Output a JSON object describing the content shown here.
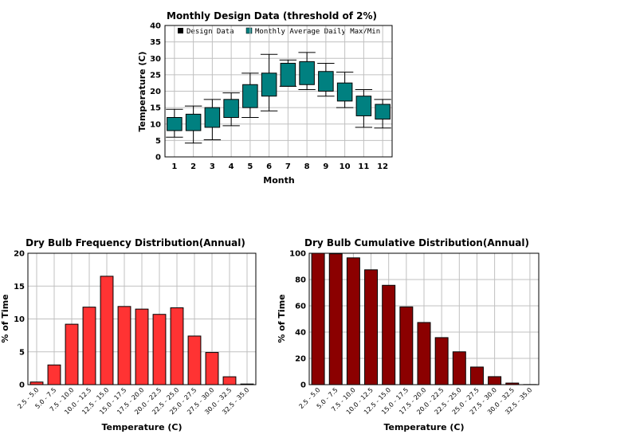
{
  "colors": {
    "box_fill": "#008080",
    "freq_bar": "#ff3333",
    "cum_bar": "#8b0000",
    "grid": "#c0c0c0"
  },
  "chart_data": [
    {
      "type": "box",
      "title": "Monthly Design Data (threshold of 2%)",
      "xlabel": "Month",
      "ylabel": "Temperature (C)",
      "categories": [
        "1",
        "2",
        "3",
        "4",
        "5",
        "6",
        "7",
        "8",
        "9",
        "10",
        "11",
        "12"
      ],
      "ylim": [
        0,
        40
      ],
      "yticks": [
        0,
        5,
        10,
        15,
        20,
        25,
        30,
        35,
        40
      ],
      "grid": true,
      "legend": [
        "Design Data",
        "Monthly Average Daily Max/Min"
      ],
      "series": [
        {
          "name": "Monthly Average Daily Max/Min",
          "box_low": [
            8,
            8,
            9,
            12,
            15,
            18.5,
            21.5,
            22,
            20,
            17,
            12.5,
            11.5
          ],
          "box_high": [
            12,
            13,
            15,
            17.5,
            22,
            25.5,
            28.5,
            29,
            26,
            22.5,
            18.5,
            16
          ]
        },
        {
          "name": "Design Data",
          "whisker_low": [
            6,
            4.2,
            5.2,
            9.5,
            12,
            14,
            21.5,
            20.5,
            18.5,
            15,
            9,
            8.8
          ],
          "whisker_high": [
            14.5,
            15.5,
            17.5,
            19.5,
            25.5,
            31.2,
            29.5,
            31.8,
            28.5,
            25.8,
            20.5,
            17.5
          ]
        }
      ]
    },
    {
      "type": "bar",
      "title": "Dry Bulb Frequency Distribution(Annual)",
      "xlabel": "Temperature (C)",
      "ylabel": "% of Time",
      "categories": [
        "2.5 - 5.0",
        "5.0 - 7.5",
        "7.5 - 10.0",
        "10.0 - 12.5",
        "12.5 - 15.0",
        "15.0 - 17.5",
        "17.5 - 20.0",
        "20.0 - 22.5",
        "22.5 - 25.0",
        "25.0 - 27.5",
        "27.5 - 30.0",
        "30.0 - 32.5",
        "32.5 - 35.0"
      ],
      "values": [
        0.4,
        3.0,
        9.2,
        11.8,
        16.5,
        11.9,
        11.5,
        10.7,
        11.7,
        7.4,
        4.9,
        1.2,
        0.1
      ],
      "ylim": [
        0,
        20
      ],
      "yticks": [
        0,
        5,
        10,
        15,
        20
      ],
      "grid": true
    },
    {
      "type": "bar",
      "title": "Dry Bulb Cumulative Distribution(Annual)",
      "xlabel": "Temperature (C)",
      "ylabel": "% of Time",
      "categories": [
        "2.5 - 5.0",
        "5.0 - 7.5",
        "7.5 - 10.0",
        "10.0 - 12.5",
        "12.5 - 15.0",
        "15.0 - 17.5",
        "17.5 - 20.0",
        "20.0 - 22.5",
        "22.5 - 25.0",
        "25.0 - 27.5",
        "27.5 - 30.0",
        "30.0 - 32.5",
        "32.5 - 35.0"
      ],
      "values": [
        100,
        99.6,
        96.5,
        87.4,
        75.6,
        59.2,
        47.3,
        35.8,
        25.0,
        13.4,
        6.1,
        1.2,
        0.1
      ],
      "ylim": [
        0,
        100
      ],
      "yticks": [
        0,
        20,
        40,
        60,
        80,
        100
      ],
      "grid": true
    }
  ]
}
